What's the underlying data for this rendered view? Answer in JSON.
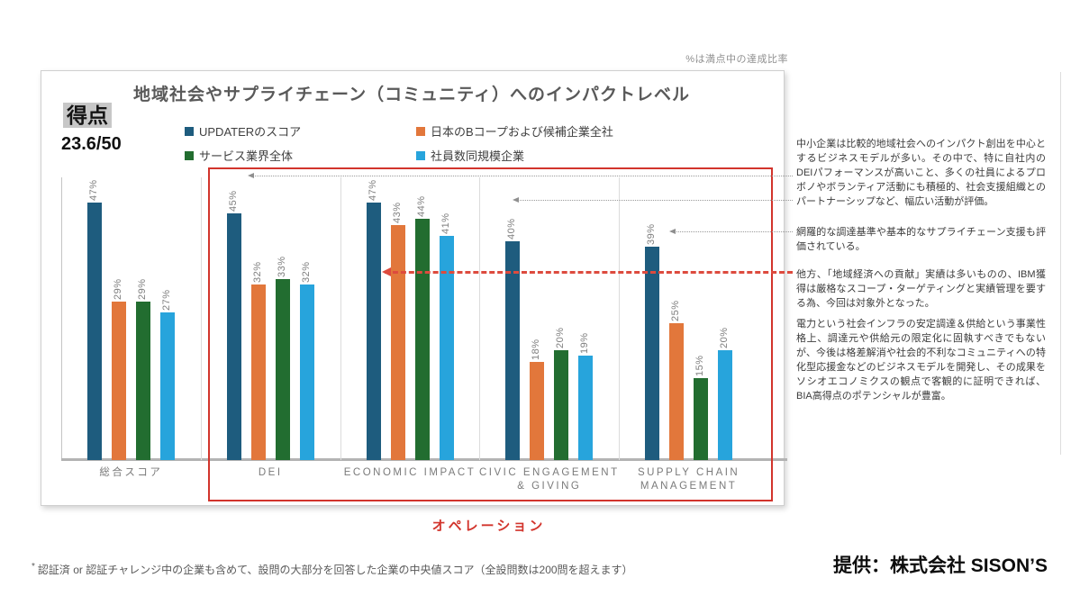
{
  "page": {
    "top_note": "%は満点中の達成比率",
    "footnote_star": "*",
    "footnote": "認証済 or 認証チャレンジ中の企業も含めて、設問の大部分を回答した企業の中央値スコア（全設問数は200問を超えます）",
    "credit": "提供：株式会社 SISON’S"
  },
  "score": {
    "label": "得点",
    "value": "23.6/50"
  },
  "operation_label": "オペレーション",
  "chart_data": {
    "type": "bar",
    "title": "地域社会やサプライチェーン（コミュニティ）へのインパクトレベル",
    "unit": "%",
    "ylim": [
      0,
      52
    ],
    "grid": false,
    "legend_position": "top",
    "categories": [
      "総合スコア",
      "DEI",
      "ECONOMIC IMPACT",
      "CIVIC ENGAGEMENT & GIVING",
      "SUPPLY CHAIN MANAGEMENT"
    ],
    "category_lines": [
      [
        "総合スコア"
      ],
      [
        "DEI"
      ],
      [
        "ECONOMIC IMPACT"
      ],
      [
        "CIVIC ENGAGEMENT",
        "& GIVING"
      ],
      [
        "SUPPLY CHAIN",
        "MANAGEMENT"
      ]
    ],
    "series": [
      {
        "name": "UPDATERのスコア",
        "color": "#1e5c7e",
        "values": [
          47,
          45,
          47,
          40,
          39
        ]
      },
      {
        "name": "日本のBコープおよび候補企業全社",
        "color": "#e2773b",
        "values": [
          29,
          32,
          43,
          18,
          25
        ]
      },
      {
        "name": "サービス業界全体",
        "color": "#226d30",
        "values": [
          29,
          33,
          44,
          20,
          15
        ]
      },
      {
        "name": "社員数同規模企業",
        "color": "#27a4dc",
        "values": [
          27,
          32,
          41,
          19,
          20
        ]
      }
    ],
    "value_label_format": "{v}%"
  },
  "annotations": {
    "p1": "中小企業は比較的地域社会へのインパクト創出を中心とするビジネスモデルが多い。その中で、特に自社内のDEIパフォーマンスが高いこと、多くの社員によるプロボノやボランティア活動にも積極的、社会支援組織とのパートナーシップなど、幅広い活動が評価。",
    "p2": "網羅的な調達基準や基本的なサプライチェーン支援も評価されている。",
    "p3": "他方、「地域経済への貢献」実績は多いものの、IBM獲得は厳格なスコープ・ターゲティングと実績管理を要する為、今回は対象外となった。",
    "p4": "電力という社会インフラの安定調達＆供給という事業性格上、調達元や供給元の限定化に固執すべきでもないが、今後は格差解消や社会的不利なコミュニティへの特化型応援金などのビジネスモデルを開発し、その成果をソシオエコノミクスの観点で客観的に証明できれば、BIA高得点のポテンシャルが豊富。"
  },
  "colors": {
    "accent_red": "#d2342c",
    "arrow_red": "#dd4b3e",
    "arrow_gray": "#9a9a9a",
    "title_gray": "#595959",
    "label_gray": "#7f7f7f"
  }
}
